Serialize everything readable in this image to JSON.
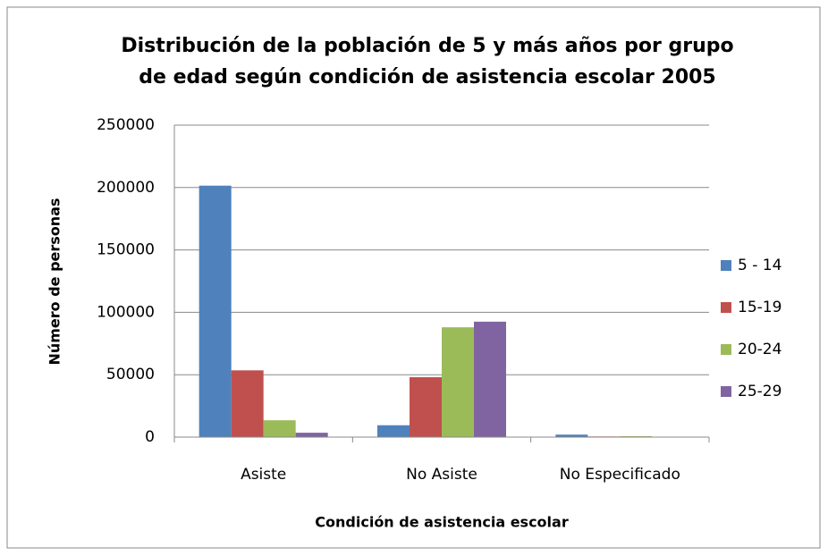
{
  "chart_data": {
    "type": "bar",
    "title": [
      "Distribución de la población de 5 y más años por grupo",
      "de edad según condición de asistencia escolar 2005"
    ],
    "x_label": "Condición de asistencia escolar",
    "y_label": "Número de personas",
    "categories": [
      "Asiste",
      "No Asiste",
      "No Especificado"
    ],
    "series": [
      {
        "name": "5 - 14",
        "color": "#4f81bd",
        "values": [
          201500,
          9500,
          2000
        ]
      },
      {
        "name": "15-19",
        "color": "#c0504d",
        "values": [
          53500,
          48000,
          500
        ]
      },
      {
        "name": "20-24",
        "color": "#9bbb59",
        "values": [
          13500,
          88000,
          700
        ]
      },
      {
        "name": "25-29",
        "color": "#8064a2",
        "values": [
          3500,
          92500,
          300
        ]
      }
    ],
    "ylim": [
      0,
      250000
    ],
    "yticks": [
      0,
      50000,
      100000,
      150000,
      200000,
      250000
    ],
    "grid": true,
    "legend": "right"
  }
}
